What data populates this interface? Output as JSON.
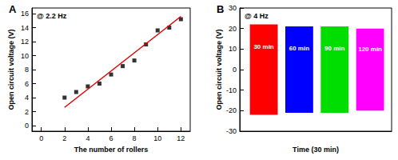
{
  "chart_data": [
    {
      "type": "scatter",
      "title": "A",
      "annotation": "@ 2.2 Hz",
      "x_label": "The number of rollers",
      "y_label": "Open circuit voltage (V)",
      "x": [
        2,
        3,
        4,
        5,
        6,
        7,
        8,
        9,
        10,
        11,
        12
      ],
      "values": [
        4.0,
        4.8,
        5.6,
        6.0,
        7.3,
        8.5,
        9.3,
        11.6,
        13.6,
        14.0,
        15.2
      ],
      "color": "#000000",
      "marker": "square",
      "fit": {
        "x": [
          2,
          12
        ],
        "values": [
          2.6,
          15.6
        ],
        "color": "#e00000"
      },
      "xlim": [
        -0.8,
        12.8
      ],
      "xticks": [
        0,
        2,
        4,
        6,
        8,
        10,
        12
      ],
      "ylim": [
        -0.8,
        16.8
      ],
      "yticks": [
        0,
        2,
        4,
        6,
        8,
        10,
        12,
        14,
        16
      ],
      "grid": false
    },
    {
      "type": "band",
      "title": "B",
      "annotation": "@ 4 Hz",
      "x_label": "Time (30 min)",
      "y_label": "Open circuit voltage (V)",
      "series": [
        {
          "name": "30 min",
          "color": "#ff0000",
          "x": [
            0.8,
            3.0
          ],
          "values": [
            -22,
            22
          ]
        },
        {
          "name": "60 min",
          "color": "#0000ff",
          "x": [
            3.6,
            5.8
          ],
          "values": [
            -21,
            21
          ]
        },
        {
          "name": "90 min",
          "color": "#00dd00",
          "x": [
            6.4,
            8.6
          ],
          "values": [
            -21,
            21
          ]
        },
        {
          "name": "120 min",
          "color": "#ff00ff",
          "x": [
            9.2,
            11.4
          ],
          "values": [
            -20,
            20
          ]
        }
      ],
      "xlim": [
        0,
        12
      ],
      "ylim": [
        -30,
        30
      ],
      "yticks": [
        -30,
        -20,
        -10,
        0,
        10,
        20,
        30
      ],
      "tick_labels": "y",
      "grid": false
    }
  ]
}
